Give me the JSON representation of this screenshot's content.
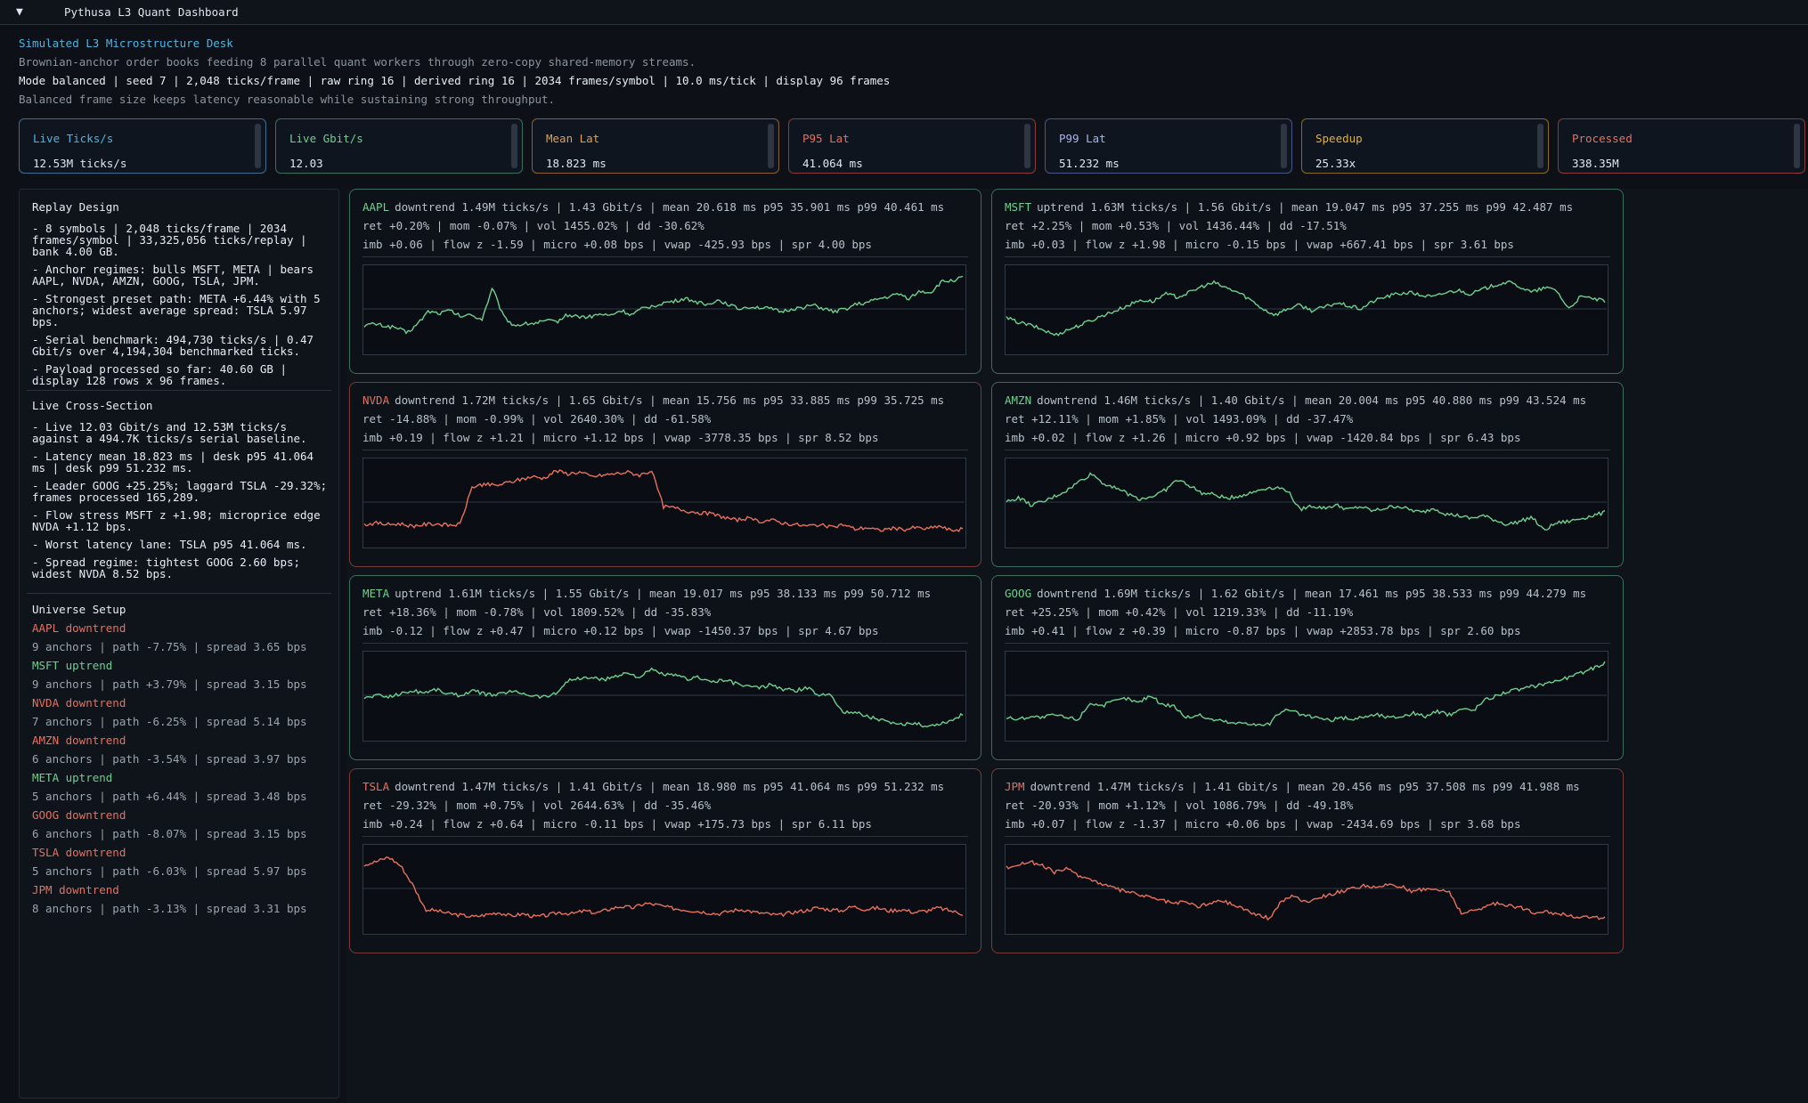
{
  "window": {
    "title": "Pythusa L3 Quant Dashboard",
    "collapse_glyph": "▼"
  },
  "header": {
    "title": "Simulated L3 Microstructure Desk",
    "subtitle": "Brownian-anchor order books feeding 8 parallel quant workers through zero-copy shared-memory streams.",
    "mode_line": "Mode balanced | seed 7 | 2,048 ticks/frame | raw ring 16 | derived ring 16 | 2034 frames/symbol | 10.0 ms/tick | display 96 frames",
    "note": "Balanced frame size keeps latency reasonable while sustaining strong throughput."
  },
  "colors": {
    "up": "#6fcf8f",
    "down": "#e8705f",
    "up_border": "#3b6e5a",
    "down_border": "#7a3a38",
    "accent": "#4fb3e0"
  },
  "cards": [
    {
      "label": "Live Ticks/s",
      "value": "12.53M ticks/s",
      "label_color": "#4fb3e0",
      "border": "#3c6f8f"
    },
    {
      "label": "Live Gbit/s",
      "value": "12.03",
      "label_color": "#6fcf8f",
      "border": "#3b6e5a"
    },
    {
      "label": "Mean Lat",
      "value": "18.823 ms",
      "label_color": "#e0a050",
      "border": "#8a6030"
    },
    {
      "label": "P95 Lat",
      "value": "41.064 ms",
      "label_color": "#e8705f",
      "border": "#8a3c38"
    },
    {
      "label": "P99 Lat",
      "value": "51.232 ms",
      "label_color": "#a9b4e8",
      "border": "#4c5684"
    },
    {
      "label": "Speedup",
      "value": "25.33x",
      "label_color": "#e0b040",
      "border": "#8a6a20"
    },
    {
      "label": "Processed",
      "value": "338.35M",
      "label_color": "#e8705f",
      "border": "#8a3c38"
    }
  ],
  "sidebar": {
    "replay": {
      "title": "Replay Design",
      "items": [
        "- 8 symbols | 2,048 ticks/frame | 2034 frames/symbol | 33,325,056 ticks/replay | bank 4.00 GB.",
        "- Anchor regimes: bulls MSFT, META | bears AAPL, NVDA, AMZN, GOOG, TSLA, JPM.",
        "- Strongest preset path: META +6.44% with 5 anchors; widest average spread: TSLA 5.97 bps.",
        "- Serial benchmark: 494,730 ticks/s | 0.47 Gbit/s over 4,194,304 benchmarked ticks.",
        "- Payload processed so far: 40.60 GB | display 128 rows x 96 frames."
      ]
    },
    "cross": {
      "title": "Live Cross-Section",
      "items": [
        "- Live 12.03 Gbit/s and 12.53M ticks/s against a 494.7K ticks/s serial baseline.",
        "- Latency mean 18.823 ms | desk p95 41.064 ms | desk p99 51.232 ms.",
        "- Leader GOOG +25.25%; laggard TSLA -29.32%; frames processed 165,289.",
        "- Flow stress MSFT z +1.98; microprice edge NVDA +1.12 bps.",
        "- Worst latency lane: TSLA p95 41.064 ms.",
        "- Spread regime: tightest GOOG 2.60 bps; widest NVDA 8.52 bps."
      ]
    },
    "universe": {
      "title": "Universe Setup",
      "items": [
        {
          "name": "AAPL downtrend",
          "trend": "down",
          "detail": "9 anchors | path -7.75% | spread 3.65 bps"
        },
        {
          "name": "MSFT uptrend",
          "trend": "up",
          "detail": "9 anchors | path +3.79% | spread 3.15 bps"
        },
        {
          "name": "NVDA downtrend",
          "trend": "down",
          "detail": "7 anchors | path -6.25% | spread 5.14 bps"
        },
        {
          "name": "AMZN downtrend",
          "trend": "down",
          "detail": "6 anchors | path -3.54% | spread 3.97 bps"
        },
        {
          "name": "META uptrend",
          "trend": "up",
          "detail": "5 anchors | path +6.44% | spread 3.48 bps"
        },
        {
          "name": "GOOG downtrend",
          "trend": "down",
          "detail": "6 anchors | path -8.07% | spread 3.15 bps"
        },
        {
          "name": "TSLA downtrend",
          "trend": "down",
          "detail": "5 anchors | path -6.03% | spread 5.97 bps"
        },
        {
          "name": "JPM downtrend",
          "trend": "down",
          "detail": "8 anchors | path -3.13% | spread 3.31 bps"
        }
      ]
    }
  },
  "panels": [
    {
      "symbol": "AAPL",
      "trend": "up",
      "line1": "downtrend 1.49M ticks/s | 1.43 Gbit/s  | mean 20.618 ms p95 35.901 ms p99 40.461 ms",
      "line2": "ret +0.20% | mom -0.07% | vol 1455.02% | dd -30.62%",
      "line3": "imb +0.06 | flow z -1.59 | micro +0.08 bps | vwap -425.93 bps | spr 4.00 bps",
      "series": [
        0.28,
        0.3,
        0.27,
        0.25,
        0.18,
        0.3,
        0.47,
        0.44,
        0.48,
        0.4,
        0.42,
        0.36,
        0.78,
        0.4,
        0.28,
        0.3,
        0.31,
        0.34,
        0.33,
        0.42,
        0.4,
        0.39,
        0.43,
        0.41,
        0.48,
        0.42,
        0.5,
        0.54,
        0.58,
        0.6,
        0.64,
        0.6,
        0.55,
        0.62,
        0.57,
        0.5,
        0.53,
        0.52,
        0.5,
        0.46,
        0.5,
        0.52,
        0.55,
        0.5,
        0.46,
        0.5,
        0.56,
        0.58,
        0.63,
        0.66,
        0.7,
        0.64,
        0.74,
        0.72,
        0.86,
        0.88,
        0.92
      ]
    },
    {
      "symbol": "MSFT",
      "trend": "up",
      "line1": "uptrend 1.63M ticks/s | 1.56 Gbit/s  | mean 19.047 ms p95 37.255 ms p99 42.487 ms",
      "line2": "ret +2.25% | mom +0.53% | vol 1436.44% | dd -17.51%",
      "line3": "imb +0.03 | flow z +1.98 | micro -0.15 bps | vwap +667.41 bps | spr 3.61 bps",
      "series": [
        0.38,
        0.32,
        0.28,
        0.22,
        0.15,
        0.22,
        0.28,
        0.35,
        0.42,
        0.48,
        0.55,
        0.62,
        0.6,
        0.7,
        0.66,
        0.72,
        0.8,
        0.85,
        0.78,
        0.72,
        0.62,
        0.5,
        0.42,
        0.5,
        0.55,
        0.48,
        0.52,
        0.58,
        0.54,
        0.5,
        0.6,
        0.66,
        0.7,
        0.72,
        0.68,
        0.66,
        0.72,
        0.75,
        0.7,
        0.76,
        0.82,
        0.86,
        0.8,
        0.72,
        0.78,
        0.76,
        0.5,
        0.66,
        0.64,
        0.6
      ]
    },
    {
      "symbol": "NVDA",
      "trend": "down",
      "line1": "downtrend 1.72M ticks/s | 1.65 Gbit/s  | mean 15.756 ms p95 33.885 ms p99 35.725 ms",
      "line2": "ret -14.88% | mom -0.99% | vol 2640.30% | dd -61.58%",
      "line3": "imb +0.19 | flow z +1.21 | micro +1.12 bps | vwap -3778.35 bps | spr 8.52 bps",
      "series": [
        0.2,
        0.22,
        0.2,
        0.21,
        0.18,
        0.2,
        0.21,
        0.19,
        0.2,
        0.7,
        0.74,
        0.72,
        0.76,
        0.8,
        0.84,
        0.82,
        0.92,
        0.88,
        0.9,
        0.84,
        0.86,
        0.88,
        0.9,
        0.86,
        0.92,
        0.44,
        0.42,
        0.38,
        0.36,
        0.34,
        0.3,
        0.26,
        0.28,
        0.24,
        0.26,
        0.22,
        0.2,
        0.18,
        0.2,
        0.16,
        0.2,
        0.14,
        0.16,
        0.12,
        0.15,
        0.13,
        0.16,
        0.14,
        0.18,
        0.12,
        0.14
      ]
    },
    {
      "symbol": "AMZN",
      "trend": "up",
      "line1": "downtrend 1.46M ticks/s | 1.40 Gbit/s  | mean 20.004 ms p95 40.880 ms p99 43.524 ms",
      "line2": "ret +12.11% | mom +1.85% | vol 1493.09% | dd -37.47%",
      "line3": "imb +0.02 | flow z +1.26 | micro +0.92 bps | vwap -1420.84 bps | spr 6.43 bps",
      "series": [
        0.5,
        0.56,
        0.46,
        0.5,
        0.58,
        0.66,
        0.78,
        0.88,
        0.74,
        0.7,
        0.6,
        0.54,
        0.58,
        0.66,
        0.8,
        0.72,
        0.62,
        0.6,
        0.55,
        0.58,
        0.62,
        0.68,
        0.7,
        0.66,
        0.4,
        0.45,
        0.42,
        0.46,
        0.4,
        0.44,
        0.38,
        0.42,
        0.45,
        0.4,
        0.36,
        0.42,
        0.34,
        0.32,
        0.28,
        0.32,
        0.26,
        0.2,
        0.24,
        0.3,
        0.12,
        0.22,
        0.24,
        0.28,
        0.32,
        0.36
      ]
    },
    {
      "symbol": "META",
      "trend": "up",
      "line1": "uptrend 1.61M ticks/s | 1.55 Gbit/s  | mean 19.017 ms p95 38.133 ms p99 50.712 ms",
      "line2": "ret +18.36% | mom -0.78% | vol 1809.52% | dd -35.83%",
      "line3": "imb -0.12 | flow z +0.47 | micro +0.12 bps | vwap -1450.37 bps | spr 4.67 bps",
      "series": [
        0.46,
        0.5,
        0.48,
        0.52,
        0.56,
        0.54,
        0.58,
        0.52,
        0.5,
        0.56,
        0.52,
        0.5,
        0.55,
        0.54,
        0.5,
        0.48,
        0.52,
        0.7,
        0.72,
        0.74,
        0.7,
        0.76,
        0.8,
        0.74,
        0.84,
        0.78,
        0.76,
        0.72,
        0.74,
        0.68,
        0.7,
        0.66,
        0.62,
        0.6,
        0.64,
        0.58,
        0.56,
        0.6,
        0.5,
        0.52,
        0.26,
        0.28,
        0.22,
        0.18,
        0.12,
        0.1,
        0.14,
        0.08,
        0.12,
        0.16,
        0.24
      ]
    },
    {
      "symbol": "GOOG",
      "trend": "up",
      "line1": "downtrend 1.69M ticks/s | 1.62 Gbit/s  | mean 17.461 ms p95 38.533 ms p99 44.279 ms",
      "line2": "ret +25.25% | mom +0.42% | vol 1219.33% | dd -11.19%",
      "line3": "imb +0.41 | flow z +0.39 | micro -0.87 bps | vwap +2853.78 bps | spr 2.60 bps",
      "series": [
        0.2,
        0.18,
        0.22,
        0.2,
        0.24,
        0.2,
        0.18,
        0.4,
        0.36,
        0.42,
        0.46,
        0.4,
        0.5,
        0.38,
        0.36,
        0.2,
        0.24,
        0.18,
        0.16,
        0.12,
        0.14,
        0.1,
        0.12,
        0.3,
        0.28,
        0.22,
        0.2,
        0.16,
        0.2,
        0.18,
        0.22,
        0.24,
        0.2,
        0.22,
        0.26,
        0.22,
        0.28,
        0.24,
        0.32,
        0.3,
        0.44,
        0.5,
        0.56,
        0.58,
        0.62,
        0.66,
        0.7,
        0.74,
        0.8,
        0.86,
        0.94
      ]
    },
    {
      "symbol": "TSLA",
      "trend": "down",
      "line1": "downtrend 1.47M ticks/s | 1.41 Gbit/s  | mean 18.980 ms p95 41.064 ms p99 51.232 ms",
      "line2": "ret -29.32% | mom +0.75% | vol 2644.63% | dd -35.46%",
      "line3": "imb +0.24 | flow z +0.64 | micro -0.11 bps | vwap +175.73 bps | spr 6.11 bps",
      "series": [
        0.82,
        0.86,
        0.92,
        0.8,
        0.54,
        0.22,
        0.2,
        0.16,
        0.14,
        0.12,
        0.15,
        0.18,
        0.13,
        0.16,
        0.12,
        0.14,
        0.18,
        0.16,
        0.2,
        0.17,
        0.22,
        0.26,
        0.24,
        0.3,
        0.28,
        0.24,
        0.22,
        0.2,
        0.18,
        0.16,
        0.2,
        0.22,
        0.18,
        0.16,
        0.14,
        0.18,
        0.2,
        0.24,
        0.22,
        0.2,
        0.26,
        0.22,
        0.24,
        0.2,
        0.22,
        0.18,
        0.2,
        0.24,
        0.2,
        0.16
      ]
    },
    {
      "symbol": "JPM",
      "trend": "down",
      "line1": "downtrend 1.47M ticks/s | 1.41 Gbit/s  | mean 20.456 ms p95 37.508 ms p99 41.988 ms",
      "line2": "ret -20.93% | mom +1.12% | vol 1086.79% | dd -49.18%",
      "line3": "imb +0.07 | flow z -1.37 | micro +0.06 bps | vwap -2434.69 bps | spr 3.68 bps",
      "series": [
        0.78,
        0.82,
        0.86,
        0.8,
        0.72,
        0.76,
        0.68,
        0.62,
        0.56,
        0.5,
        0.46,
        0.42,
        0.38,
        0.34,
        0.3,
        0.32,
        0.26,
        0.3,
        0.34,
        0.28,
        0.22,
        0.14,
        0.1,
        0.34,
        0.4,
        0.32,
        0.38,
        0.42,
        0.46,
        0.5,
        0.54,
        0.5,
        0.56,
        0.52,
        0.46,
        0.5,
        0.48,
        0.46,
        0.16,
        0.2,
        0.26,
        0.3,
        0.28,
        0.24,
        0.18,
        0.2,
        0.16,
        0.14,
        0.12,
        0.1,
        0.12
      ]
    }
  ]
}
